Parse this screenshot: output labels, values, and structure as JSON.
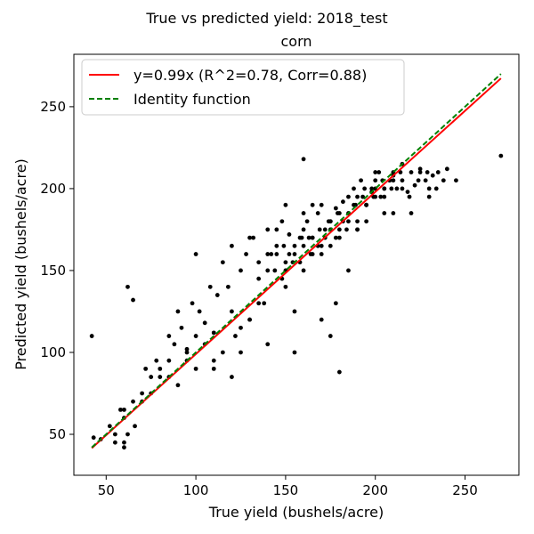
{
  "chart_data": {
    "type": "scatter",
    "suptitle": "True vs predicted yield: 2018_test",
    "title": "corn",
    "xlabel": "True yield (bushels/acre)",
    "ylabel": "Predicted yield (bushels/acre)",
    "xlim": [
      32,
      280
    ],
    "ylim": [
      25,
      282
    ],
    "xticks": [
      50,
      100,
      150,
      200,
      250
    ],
    "yticks": [
      50,
      100,
      150,
      200,
      250
    ],
    "grid": false,
    "legend": {
      "placement": "upper-left",
      "entries": [
        {
          "label": "y=0.99x (R^2=0.78, Corr=0.88)",
          "color": "#ff0000",
          "style": "solid"
        },
        {
          "label": "Identity function",
          "color": "#008000",
          "style": "dashed"
        }
      ]
    },
    "lines": [
      {
        "name": "fit",
        "slope": 0.99,
        "x": [
          42,
          270
        ],
        "color": "#ff0000",
        "style": "solid"
      },
      {
        "name": "identity",
        "slope": 1.0,
        "x": [
          42,
          270
        ],
        "color": "#008000",
        "style": "dashed"
      }
    ],
    "points": {
      "color": "#000000",
      "x": [
        42,
        43,
        47,
        55,
        60,
        62,
        65,
        66,
        70,
        72,
        75,
        78,
        80,
        85,
        88,
        92,
        95,
        98,
        100,
        102,
        105,
        108,
        110,
        112,
        115,
        118,
        120,
        122,
        125,
        128,
        130,
        132,
        135,
        138,
        140,
        142,
        145,
        148,
        150,
        152,
        155,
        158,
        160,
        162,
        165,
        168,
        170,
        172,
        175,
        178,
        180,
        182,
        185,
        188,
        190,
        192,
        195,
        198,
        200,
        202,
        205,
        208,
        210,
        212,
        215,
        218,
        220,
        222,
        225,
        228,
        230,
        232,
        235,
        238,
        240,
        245,
        270,
        160,
        165,
        155,
        140,
        120,
        100,
        60,
        62,
        60,
        180,
        178,
        175,
        90,
        85,
        95,
        110,
        125,
        130,
        135,
        145,
        150,
        155,
        160,
        170,
        175,
        185,
        190,
        195,
        200,
        205,
        210,
        215,
        220,
        225,
        230,
        140,
        145,
        150,
        160,
        165,
        170,
        175,
        180,
        185,
        190,
        195,
        200,
        205,
        210,
        215,
        135,
        130,
        125,
        120,
        115,
        110,
        105,
        100,
        95,
        90,
        85,
        80,
        75,
        70,
        65,
        60,
        58,
        55,
        52,
        150,
        155,
        160,
        165,
        170,
        175,
        180,
        185,
        190,
        195,
        200,
        205,
        210,
        148,
        152,
        158,
        163,
        168,
        172,
        178,
        182,
        188,
        193,
        198,
        203,
        208,
        140,
        144,
        149,
        154,
        159,
        164,
        169,
        174,
        179,
        184,
        189,
        194,
        199,
        204,
        209,
        214,
        219,
        224,
        229,
        234
      ],
      "y": [
        110,
        48,
        47,
        45,
        65,
        140,
        132,
        55,
        70,
        90,
        75,
        95,
        85,
        110,
        105,
        115,
        102,
        130,
        160,
        125,
        118,
        140,
        112,
        135,
        155,
        140,
        165,
        110,
        150,
        160,
        120,
        170,
        145,
        130,
        175,
        160,
        165,
        180,
        150,
        172,
        160,
        170,
        175,
        180,
        160,
        185,
        190,
        170,
        175,
        188,
        185,
        192,
        180,
        200,
        195,
        205,
        190,
        198,
        200,
        210,
        195,
        205,
        208,
        200,
        215,
        198,
        210,
        202,
        212,
        205,
        200,
        208,
        210,
        205,
        212,
        205,
        220,
        218,
        190,
        125,
        105,
        85,
        110,
        45,
        50,
        42,
        88,
        130,
        110,
        125,
        85,
        95,
        90,
        100,
        170,
        155,
        175,
        190,
        100,
        185,
        120,
        165,
        150,
        175,
        180,
        210,
        185,
        205,
        200,
        185,
        210,
        195,
        150,
        160,
        155,
        165,
        170,
        160,
        180,
        170,
        185,
        175,
        190,
        195,
        200,
        185,
        205,
        130,
        120,
        115,
        125,
        100,
        95,
        105,
        90,
        100,
        80,
        95,
        90,
        85,
        75,
        70,
        60,
        65,
        50,
        55,
        140,
        165,
        150,
        170,
        165,
        180,
        175,
        195,
        180,
        190,
        205,
        200,
        210,
        145,
        160,
        155,
        170,
        165,
        175,
        170,
        180,
        190,
        195,
        200,
        195,
        205,
        160,
        150,
        165,
        155,
        170,
        160,
        175,
        180,
        185,
        175,
        190,
        200,
        195,
        205,
        200,
        210,
        195,
        205,
        210,
        200
      ]
    }
  }
}
